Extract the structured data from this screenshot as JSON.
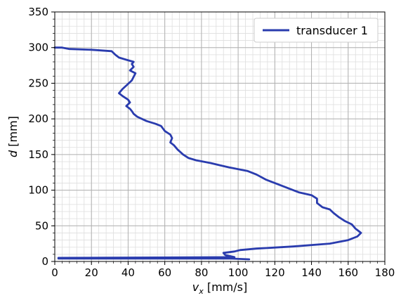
{
  "chart_data": {
    "type": "line",
    "title": "",
    "xlabel": "v",
    "xlabel_sub": "x",
    "xlabel_unit": " [mm/s]",
    "ylabel": "d",
    "ylabel_unit": " [mm]",
    "xlim": [
      0,
      180
    ],
    "ylim": [
      0,
      350
    ],
    "xticks": [
      "0",
      "20",
      "40",
      "60",
      "80",
      "100",
      "120",
      "140",
      "160",
      "180"
    ],
    "yticks": [
      "0",
      "50",
      "100",
      "150",
      "200",
      "250",
      "300",
      "350"
    ],
    "grid": "major and minor",
    "legend_position": "top-right",
    "colors": {
      "series": "#2a3cae",
      "major_grid": "#b0b0b0",
      "minor_grid": "#dedede"
    },
    "series": [
      {
        "name": "transducer 1",
        "points": [
          [
            106,
            3
          ],
          [
            96,
            4
          ],
          [
            2,
            4
          ],
          [
            2,
            5
          ],
          [
            98,
            6
          ],
          [
            93,
            9
          ],
          [
            92,
            12
          ],
          [
            98,
            14
          ],
          [
            101,
            16
          ],
          [
            110,
            18
          ],
          [
            130,
            21
          ],
          [
            150,
            25
          ],
          [
            160,
            30
          ],
          [
            165,
            35
          ],
          [
            167,
            40
          ],
          [
            164,
            46
          ],
          [
            162,
            52
          ],
          [
            158,
            57
          ],
          [
            155,
            62
          ],
          [
            152,
            68
          ],
          [
            150,
            73
          ],
          [
            146,
            76
          ],
          [
            143,
            82
          ],
          [
            143,
            88
          ],
          [
            140,
            93
          ],
          [
            133,
            97
          ],
          [
            120,
            110
          ],
          [
            115,
            115
          ],
          [
            110,
            122
          ],
          [
            105,
            127
          ],
          [
            95,
            132
          ],
          [
            90,
            135
          ],
          [
            85,
            138
          ],
          [
            77,
            142
          ],
          [
            73,
            145
          ],
          [
            70,
            150
          ],
          [
            67,
            157
          ],
          [
            65,
            163
          ],
          [
            63,
            167
          ],
          [
            64,
            173
          ],
          [
            63,
            178
          ],
          [
            60,
            183
          ],
          [
            58,
            190
          ],
          [
            55,
            193
          ],
          [
            50,
            197
          ],
          [
            45,
            203
          ],
          [
            43,
            207
          ],
          [
            42,
            211
          ],
          [
            41,
            214
          ],
          [
            39,
            218
          ],
          [
            41,
            223
          ],
          [
            40,
            227
          ],
          [
            37,
            232
          ],
          [
            35,
            236
          ],
          [
            37,
            242
          ],
          [
            40,
            249
          ],
          [
            42,
            254
          ],
          [
            43,
            259
          ],
          [
            44,
            264
          ],
          [
            41,
            268
          ],
          [
            43,
            273
          ],
          [
            42,
            277
          ],
          [
            43,
            280
          ],
          [
            39,
            283
          ],
          [
            35,
            286
          ],
          [
            33,
            290
          ],
          [
            31,
            295
          ],
          [
            20,
            297
          ],
          [
            8,
            298
          ],
          [
            4,
            300
          ],
          [
            0,
            300
          ]
        ]
      }
    ]
  }
}
